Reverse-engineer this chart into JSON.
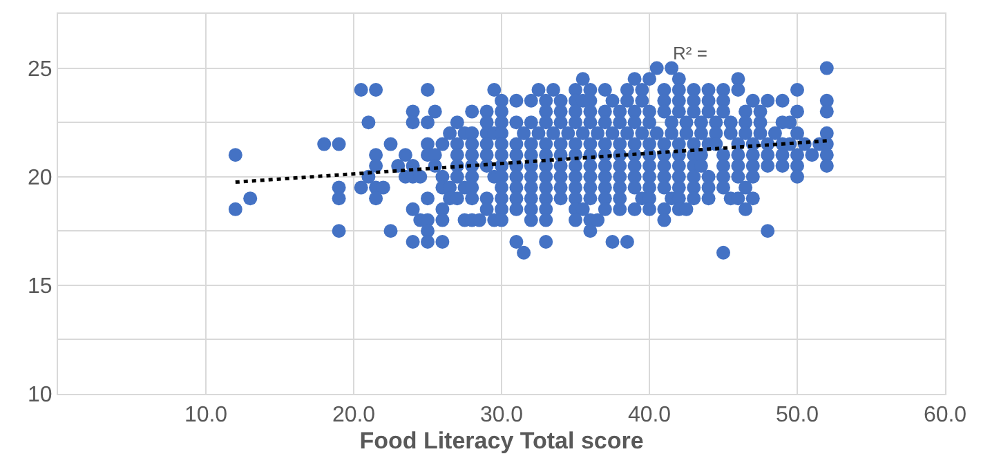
{
  "chart_data": {
    "type": "scatter",
    "xlabel": "Food Literacy Total score",
    "xlim": [
      0,
      60
    ],
    "ylim": [
      10,
      27.5
    ],
    "xticks": [
      {
        "value": 0,
        "label": null
      },
      {
        "value": 10,
        "label": "10.0"
      },
      {
        "value": 20,
        "label": "20.0"
      },
      {
        "value": 30,
        "label": "30.0"
      },
      {
        "value": 40,
        "label": "40.0"
      },
      {
        "value": 50,
        "label": "50.0"
      },
      {
        "value": 60,
        "label": "60.0"
      }
    ],
    "yticks": [
      10,
      {
        "value": 12.5,
        "label": null
      },
      15,
      {
        "value": 17.5,
        "label": null
      },
      20,
      {
        "value": 22.5,
        "label": null
      },
      25,
      {
        "value": 27.5,
        "label": null
      }
    ],
    "grid": true,
    "annotations": [
      "R² ="
    ],
    "series": [
      {
        "color": "#4472c4",
        "marker": "circle",
        "x": [
          40.5,
          41.5,
          52,
          35.5,
          39,
          40,
          42,
          46,
          20.5,
          21.5,
          25,
          29.5,
          32.5,
          33.5,
          35,
          36,
          37,
          38.5,
          39.5,
          41,
          42,
          43,
          44,
          45,
          46,
          50,
          30,
          31,
          32,
          33,
          34,
          35,
          35.5,
          36,
          37.5,
          38.5,
          39.5,
          41,
          42,
          43,
          44,
          45,
          47,
          48,
          49,
          52,
          24,
          25.5,
          28,
          29,
          30,
          33,
          34,
          35,
          36,
          37,
          38,
          39,
          40,
          41,
          42,
          43,
          44,
          45,
          46.5,
          47.5,
          50,
          52,
          21,
          24,
          25,
          27,
          29,
          30,
          31,
          32,
          33,
          34,
          35,
          36,
          37,
          38,
          39,
          40,
          41.5,
          42.5,
          43.5,
          44.5,
          45.5,
          46.5,
          47.5,
          49,
          49.5,
          26.5,
          27.5,
          28,
          29,
          29.5,
          30,
          31.5,
          32.5,
          33.5,
          34.5,
          35.5,
          36.5,
          37.5,
          38.5,
          39.5,
          40.5,
          41.5,
          42.5,
          43.5,
          44.5,
          45.5,
          46.5,
          47.5,
          48.5,
          50,
          52,
          18,
          19,
          22.5,
          25,
          26,
          27,
          28,
          29,
          30,
          31,
          32,
          33,
          34,
          35,
          36,
          37,
          38,
          39,
          40,
          41,
          42,
          43,
          44,
          44.5,
          46,
          47,
          48,
          49,
          49.5,
          50.5,
          51.5,
          52,
          12,
          21.5,
          23.5,
          25,
          25.5,
          27,
          28,
          29,
          30,
          31,
          32,
          33,
          34,
          35,
          36,
          37,
          38,
          39,
          40,
          41,
          42,
          43,
          43.5,
          45,
          46,
          47,
          48,
          49,
          50,
          51,
          52,
          21.5,
          23,
          24,
          25.5,
          27,
          28,
          29,
          30,
          31,
          32,
          33,
          34,
          35,
          36,
          37,
          38,
          39,
          40,
          41,
          42,
          43,
          43.5,
          45,
          46,
          47,
          48,
          49,
          50,
          52,
          21,
          23.5,
          24,
          24.5,
          26,
          27,
          28,
          29.5,
          30,
          31,
          32,
          33,
          34,
          35,
          36,
          37,
          38,
          39,
          40,
          41,
          42,
          43,
          44,
          45,
          46,
          47,
          50,
          19,
          20.5,
          21.5,
          22,
          26,
          26.5,
          27.5,
          28,
          30,
          31,
          32,
          33,
          34,
          35,
          36,
          37,
          38,
          39,
          40,
          41,
          42,
          43,
          44,
          45,
          46.5,
          13,
          19,
          21.5,
          25,
          26.5,
          27,
          28,
          29,
          30,
          31,
          32,
          33,
          34,
          35,
          36,
          37,
          38,
          39.5,
          40,
          41.5,
          42,
          43,
          44,
          45.5,
          46,
          47,
          12,
          24,
          26,
          29,
          30,
          31,
          32,
          33,
          35,
          35.5,
          37,
          38,
          39,
          40,
          41,
          42,
          42.5,
          46.5,
          24.5,
          25,
          26,
          27.5,
          28,
          28.5,
          29.5,
          30,
          32,
          33,
          35,
          36,
          36.5,
          41,
          19,
          22.5,
          25,
          36,
          48,
          24,
          25,
          26,
          31,
          33,
          37.5,
          38.5,
          31.5,
          45
        ],
        "values": [
          25,
          25,
          25,
          24.5,
          24.5,
          24.5,
          24.5,
          24.5,
          24,
          24,
          24,
          24,
          24,
          24,
          24,
          24,
          24,
          24,
          24,
          24,
          24,
          24,
          24,
          24,
          24,
          24,
          23.5,
          23.5,
          23.5,
          23.5,
          23.5,
          23.5,
          23.5,
          23.5,
          23.5,
          23.5,
          23.5,
          23.5,
          23.5,
          23.5,
          23.5,
          23.5,
          23.5,
          23.5,
          23.5,
          23.5,
          23,
          23,
          23,
          23,
          23,
          23,
          23,
          23,
          23,
          23,
          23,
          23,
          23,
          23,
          23,
          23,
          23,
          23,
          23,
          23,
          23,
          23,
          22.5,
          22.5,
          22.5,
          22.5,
          22.5,
          22.5,
          22.5,
          22.5,
          22.5,
          22.5,
          22.5,
          22.5,
          22.5,
          22.5,
          22.5,
          22.5,
          22.5,
          22.5,
          22.5,
          22.5,
          22.5,
          22.5,
          22.5,
          22.5,
          22.5,
          22,
          22,
          22,
          22,
          22,
          22,
          22,
          22,
          22,
          22,
          22,
          22,
          22,
          22,
          22,
          22,
          22,
          22,
          22,
          22,
          22,
          22,
          22,
          22,
          22,
          22,
          21.5,
          21.5,
          21.5,
          21.5,
          21.5,
          21.5,
          21.5,
          21.5,
          21.5,
          21.5,
          21.5,
          21.5,
          21.5,
          21.5,
          21.5,
          21.5,
          21.5,
          21.5,
          21.5,
          21.5,
          21.5,
          21.5,
          21.5,
          21.5,
          21.5,
          21.5,
          21.5,
          21.5,
          21.5,
          21.5,
          21.5,
          21.5,
          21,
          21,
          21,
          21,
          21,
          21,
          21,
          21,
          21,
          21,
          21,
          21,
          21,
          21,
          21,
          21,
          21,
          21,
          21,
          21,
          21,
          21,
          21,
          21,
          21,
          21,
          21,
          21,
          21,
          21,
          21,
          20.5,
          20.5,
          20.5,
          20.5,
          20.5,
          20.5,
          20.5,
          20.5,
          20.5,
          20.5,
          20.5,
          20.5,
          20.5,
          20.5,
          20.5,
          20.5,
          20.5,
          20.5,
          20.5,
          20.5,
          20.5,
          20.5,
          20.5,
          20.5,
          20.5,
          20.5,
          20.5,
          20.5,
          20.5,
          20,
          20,
          20,
          20,
          20,
          20,
          20,
          20,
          20,
          20,
          20,
          20,
          20,
          20,
          20,
          20,
          20,
          20,
          20,
          20,
          20,
          20,
          20,
          20,
          20,
          20,
          20,
          19.5,
          19.5,
          19.5,
          19.5,
          19.5,
          19.5,
          19.5,
          19.5,
          19.5,
          19.5,
          19.5,
          19.5,
          19.5,
          19.5,
          19.5,
          19.5,
          19.5,
          19.5,
          19.5,
          19.5,
          19.5,
          19.5,
          19.5,
          19.5,
          19.5,
          19,
          19,
          19,
          19,
          19,
          19,
          19,
          19,
          19,
          19,
          19,
          19,
          19,
          19,
          19,
          19,
          19,
          19,
          19,
          19,
          19,
          19,
          19,
          19,
          19,
          19,
          18.5,
          18.5,
          18.5,
          18.5,
          18.5,
          18.5,
          18.5,
          18.5,
          18.5,
          18.5,
          18.5,
          18.5,
          18.5,
          18.5,
          18.5,
          18.5,
          18.5,
          18.5,
          18,
          18,
          18,
          18,
          18,
          18,
          18,
          18,
          18,
          18,
          18,
          18,
          18,
          18,
          17.5,
          17.5,
          17.5,
          17.5,
          17.5,
          17,
          17,
          17,
          17,
          17,
          17,
          17,
          16.5,
          16.5
        ]
      },
      {
        "type": "line",
        "color": "#000000",
        "line_style": "dotted",
        "x": [
          12,
          52
        ],
        "values": [
          19.75,
          21.65
        ]
      }
    ]
  }
}
